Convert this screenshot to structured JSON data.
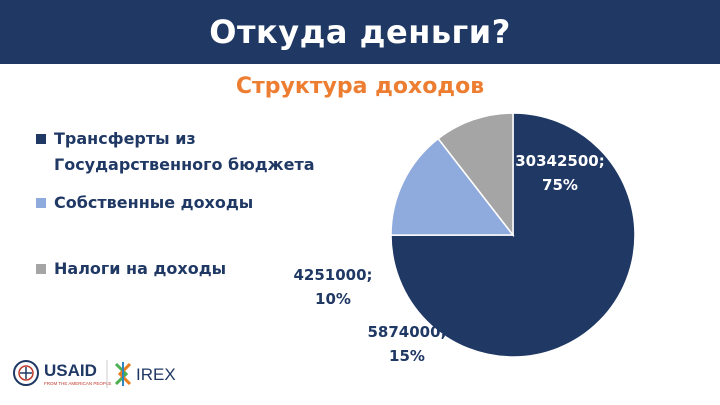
{
  "header": {
    "title": "Откуда деньги?"
  },
  "chart_data": {
    "type": "pie",
    "title": "Структура доходов",
    "slices": [
      {
        "name": "Трансферты из Государственного бюджета",
        "value": 30342500,
        "percent_label": "75%",
        "value_label": "30342500;",
        "color": "#1f3864"
      },
      {
        "name": "Собственные доходы",
        "value": 5874000,
        "percent_label": "15%",
        "value_label": "5874000;",
        "color": "#8faadc"
      },
      {
        "name": "Налоги на доходы",
        "value": 4251000,
        "percent_label": "10%",
        "value_label": "4251000;",
        "color": "#a5a5a5"
      }
    ],
    "legend_position": "left",
    "start_angle_deg": 0,
    "direction": "clockwise"
  },
  "footer": {
    "logos": [
      {
        "text": "USAID",
        "subtext": "FROM THE AMERICAN PEOPLE"
      },
      {
        "text": "IREX"
      }
    ]
  }
}
